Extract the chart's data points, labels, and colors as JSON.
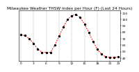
{
  "title": "Milwaukee Weather THSW Index per Hour (F) (Last 24 Hours)",
  "hours": [
    0,
    1,
    2,
    3,
    4,
    5,
    6,
    7,
    8,
    9,
    10,
    11,
    12,
    13,
    14,
    15,
    16,
    17,
    18,
    19,
    20,
    21,
    22,
    23
  ],
  "values": [
    76,
    75,
    70,
    63,
    54,
    49,
    49,
    49,
    60,
    74,
    88,
    100,
    106,
    108,
    103,
    93,
    80,
    66,
    54,
    46,
    42,
    41,
    41,
    42
  ],
  "line_color": "#ff0000",
  "marker_color": "#000000",
  "bg_color": "#ffffff",
  "grid_color": "#888888",
  "ylim": [
    36,
    114
  ],
  "ytick_vals": [
    40,
    50,
    60,
    70,
    80,
    90,
    100,
    110
  ],
  "ytick_labels": [
    "40",
    "50",
    "60",
    "70",
    "80",
    "90",
    "100",
    "110"
  ],
  "xtick_positions": [
    0,
    3,
    6,
    9,
    12,
    15,
    18,
    21,
    23
  ],
  "xtick_labels": [
    "0",
    "3",
    "6",
    "9",
    "12",
    "15",
    "18",
    "21",
    "23"
  ],
  "title_fontsize": 4.2,
  "tick_fontsize": 3.2,
  "line_width": 0.7,
  "marker_size": 2.0
}
